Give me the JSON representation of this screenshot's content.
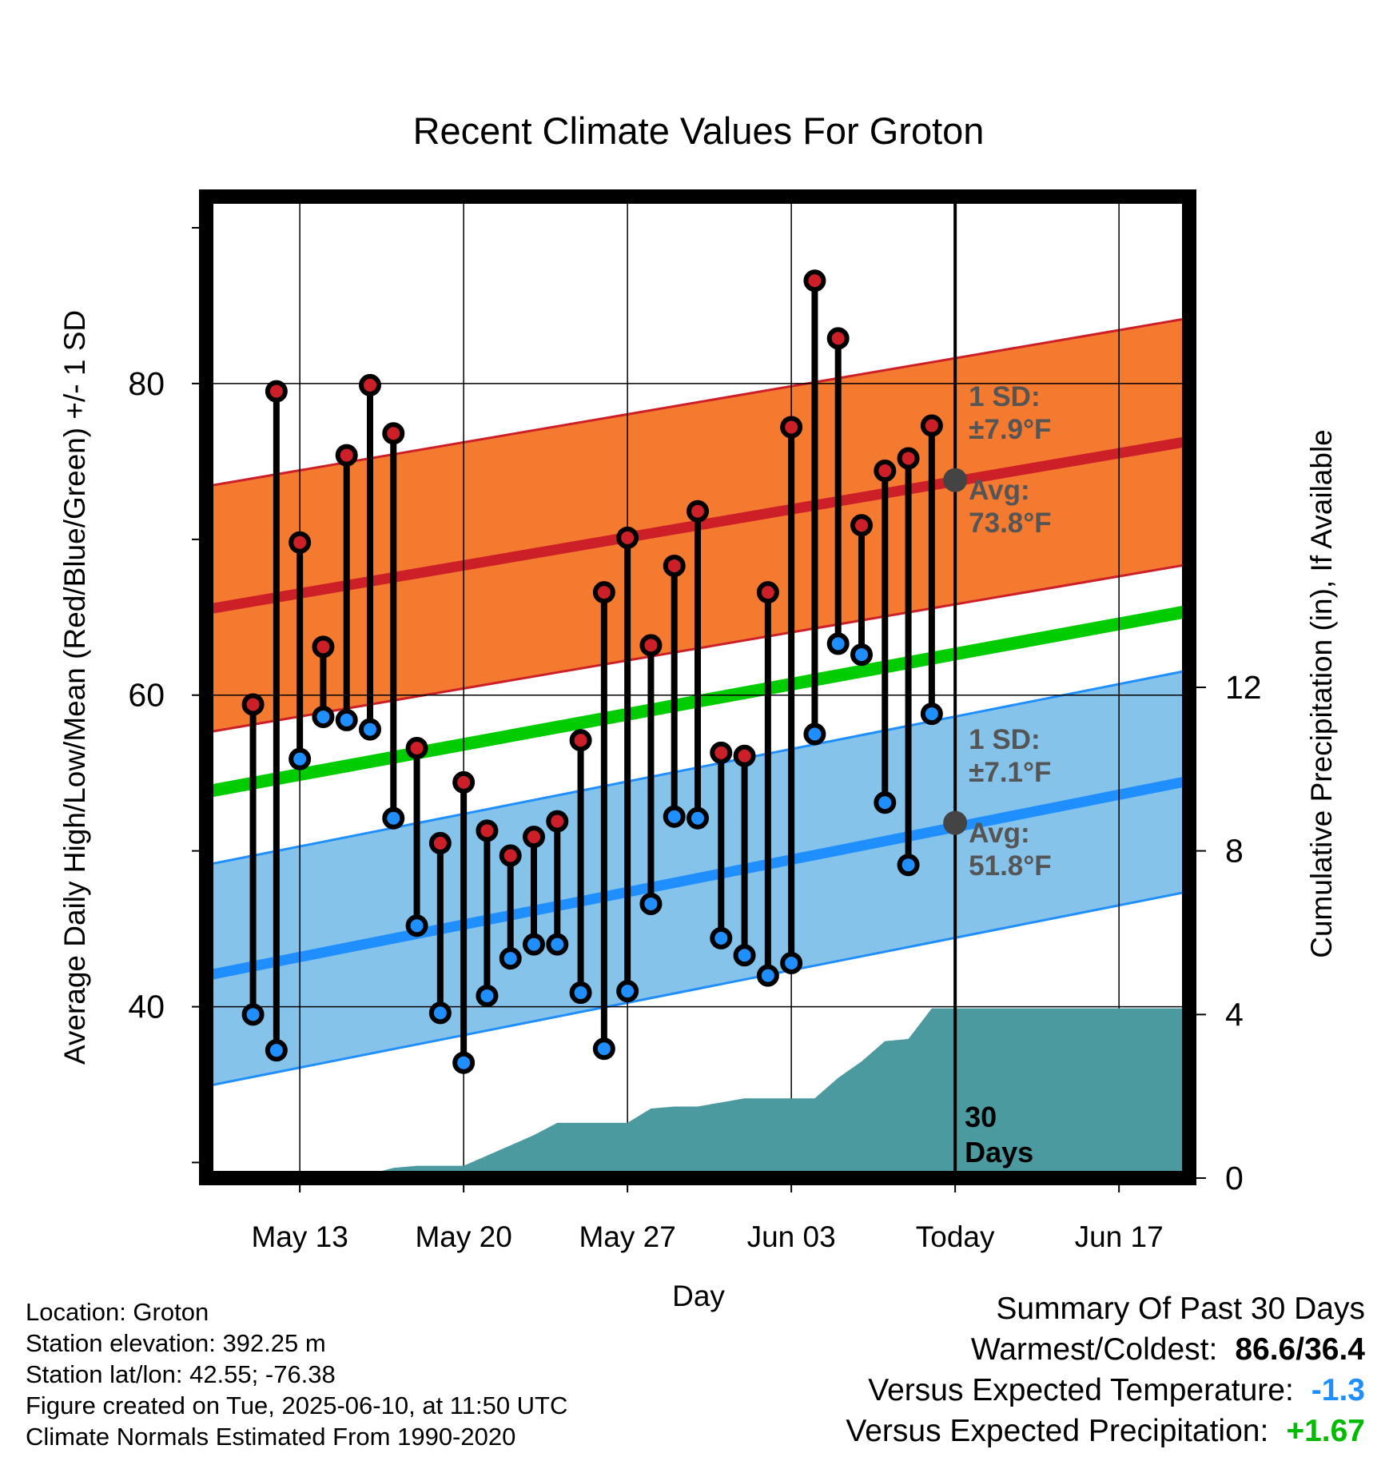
{
  "chart_data": {
    "type": "line",
    "title": "Recent Climate Values For Groton",
    "xlabel": "Day",
    "ylabel": "Average Daily High/Low/Mean (Red/Blue/Green) +/- 1 SD",
    "y2label": "Cumulative Precipitation (in), If Available",
    "xlim": [
      "2025-05-09",
      "2025-06-20"
    ],
    "ylim": [
      29,
      92
    ],
    "y2lim": [
      0,
      24
    ],
    "x_tick_labels": [
      {
        "date": "2025-05-13",
        "label": "May 13"
      },
      {
        "date": "2025-05-20",
        "label": "May 20"
      },
      {
        "date": "2025-05-27",
        "label": "May 27"
      },
      {
        "date": "2025-06-03",
        "label": "Jun 03"
      },
      {
        "date": "2025-06-10",
        "label": "Today"
      },
      {
        "date": "2025-06-17",
        "label": "Jun 17"
      }
    ],
    "y_tick_labels": [
      "40",
      "60",
      "80"
    ],
    "y2_tick_labels": [
      "0",
      "4",
      "8",
      "12"
    ],
    "grid": true,
    "today": "2025-06-10",
    "today_label": "30\nDays",
    "normals": {
      "high_mean": {
        "start": 65.5,
        "end": 76.3,
        "sd": 7.9
      },
      "low_mean": {
        "start": 42.0,
        "end": 54.5,
        "sd": 7.1
      },
      "daily_mean": {
        "start": 53.8,
        "end": 65.4
      }
    },
    "annotations": {
      "high_sd": "1 SD:\n±7.9°F",
      "high_avg": "Avg:\n73.8°F",
      "low_sd": "1 SD:\n±7.1°F",
      "low_avg": "Avg:\n51.8°F",
      "high_avg_value": 73.8,
      "low_avg_value": 51.8
    },
    "series": [
      {
        "name": "High",
        "dates": [
          "2025-05-11",
          "2025-05-12",
          "2025-05-13",
          "2025-05-14",
          "2025-05-15",
          "2025-05-16",
          "2025-05-17",
          "2025-05-18",
          "2025-05-19",
          "2025-05-20",
          "2025-05-21",
          "2025-05-22",
          "2025-05-23",
          "2025-05-24",
          "2025-05-25",
          "2025-05-26",
          "2025-05-27",
          "2025-05-28",
          "2025-05-29",
          "2025-05-30",
          "2025-05-31",
          "2025-06-01",
          "2025-06-02",
          "2025-06-03",
          "2025-06-04",
          "2025-06-05",
          "2025-06-06",
          "2025-06-07",
          "2025-06-08",
          "2025-06-09"
        ],
        "values": [
          59.4,
          79.5,
          69.8,
          63.1,
          75.4,
          79.9,
          76.8,
          56.6,
          50.5,
          54.4,
          51.3,
          49.7,
          50.9,
          51.9,
          57.1,
          66.6,
          70.1,
          63.2,
          68.3,
          71.8,
          56.3,
          56.1,
          66.6,
          77.2,
          86.6,
          82.9,
          70.9,
          74.4,
          75.2,
          77.3
        ]
      },
      {
        "name": "Low",
        "dates": [
          "2025-05-11",
          "2025-05-12",
          "2025-05-13",
          "2025-05-14",
          "2025-05-15",
          "2025-05-16",
          "2025-05-17",
          "2025-05-18",
          "2025-05-19",
          "2025-05-20",
          "2025-05-21",
          "2025-05-22",
          "2025-05-23",
          "2025-05-24",
          "2025-05-25",
          "2025-05-26",
          "2025-05-27",
          "2025-05-28",
          "2025-05-29",
          "2025-05-30",
          "2025-05-31",
          "2025-06-01",
          "2025-06-02",
          "2025-06-03",
          "2025-06-04",
          "2025-06-05",
          "2025-06-06",
          "2025-06-07",
          "2025-06-08",
          "2025-06-09"
        ],
        "values": [
          39.5,
          37.2,
          55.9,
          58.6,
          58.4,
          57.8,
          52.1,
          45.2,
          39.6,
          36.4,
          40.7,
          43.1,
          44.0,
          44.0,
          40.9,
          37.3,
          41.0,
          46.6,
          52.2,
          52.1,
          44.4,
          43.3,
          42.0,
          42.8,
          57.5,
          63.3,
          62.6,
          53.1,
          49.1,
          58.8
        ]
      },
      {
        "name": "Cumulative Precipitation",
        "dates": [
          "2025-05-09",
          "2025-05-10",
          "2025-05-11",
          "2025-05-12",
          "2025-05-13",
          "2025-05-14",
          "2025-05-15",
          "2025-05-16",
          "2025-05-17",
          "2025-05-18",
          "2025-05-19",
          "2025-05-20",
          "2025-05-21",
          "2025-05-22",
          "2025-05-23",
          "2025-05-24",
          "2025-05-25",
          "2025-05-26",
          "2025-05-27",
          "2025-05-28",
          "2025-05-29",
          "2025-05-30",
          "2025-05-31",
          "2025-06-01",
          "2025-06-02",
          "2025-06-03",
          "2025-06-04",
          "2025-06-05",
          "2025-06-06",
          "2025-06-07",
          "2025-06-08",
          "2025-06-09",
          "2025-06-10",
          "2025-06-20"
        ],
        "values": [
          0,
          0,
          0,
          0,
          0,
          0,
          0,
          0.1,
          0.25,
          0.3,
          0.3,
          0.3,
          0.55,
          0.8,
          1.05,
          1.35,
          1.35,
          1.35,
          1.35,
          1.7,
          1.75,
          1.75,
          1.85,
          1.95,
          1.95,
          1.95,
          1.95,
          2.45,
          2.85,
          3.35,
          3.4,
          4.15,
          4.15,
          4.15
        ]
      }
    ]
  },
  "location_info": {
    "location": "Location: Groton",
    "elevation": "Station elevation: 392.25 m",
    "latlon": "Station lat/lon: 42.55; -76.38",
    "created": "Figure created on Tue, 2025-06-10, at 11:50 UTC",
    "normals": "Climate Normals Estimated From 1990-2020"
  },
  "summary": {
    "title": "Summary Of Past 30 Days",
    "warmest_coldest_label": "Warmest/Coldest:",
    "warmest_coldest_value": "86.6/36.4",
    "temp_label": "Versus Expected Temperature:",
    "temp_value": "-1.3",
    "precip_label": "Versus Expected Precipitation:",
    "precip_value": "+1.67"
  },
  "colors": {
    "high": "#cd1f28",
    "low": "#1f8fff",
    "mean": "#00cc00",
    "high_band": "#f47a2f",
    "low_band": "#86c3ea",
    "precip": "#4a9aa0",
    "annotation": "#555555",
    "temp_anomaly": "#1f8fff",
    "precip_anomaly": "#00bb00"
  }
}
